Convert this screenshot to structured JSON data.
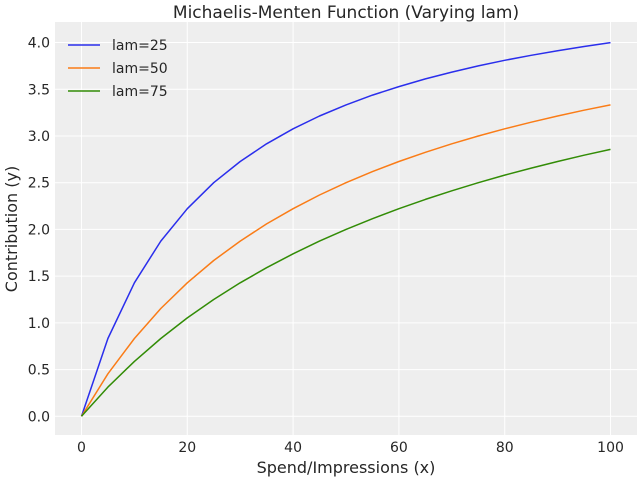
{
  "chart_data": {
    "type": "line",
    "title": "Michaelis-Menten Function (Varying lam)",
    "xlabel": "Spend/Impressions (x)",
    "ylabel": "Contribution (y)",
    "xlim": [
      -5,
      105
    ],
    "ylim": [
      -0.2,
      4.22
    ],
    "xticks": [
      0,
      20,
      40,
      60,
      80,
      100
    ],
    "xtick_labels": [
      "0",
      "20",
      "40",
      "60",
      "80",
      "100"
    ],
    "yticks": [
      0,
      0.5,
      1,
      1.5,
      2,
      2.5,
      3,
      3.5,
      4
    ],
    "ytick_labels": [
      "0.0",
      "0.5",
      "1.0",
      "1.5",
      "2.0",
      "2.5",
      "3.0",
      "3.5",
      "4.0"
    ],
    "grid": true,
    "background": "#eeeeee",
    "legend_position": "top-left",
    "x": [
      0,
      5,
      10,
      15,
      20,
      25,
      30,
      35,
      40,
      45,
      50,
      55,
      60,
      65,
      70,
      75,
      80,
      85,
      90,
      95,
      100
    ],
    "series": [
      {
        "name": "lam=25",
        "color": "#2a2eec",
        "values": [
          0,
          0.833,
          1.429,
          1.875,
          2.222,
          2.5,
          2.727,
          2.917,
          3.077,
          3.214,
          3.333,
          3.438,
          3.529,
          3.611,
          3.684,
          3.75,
          3.81,
          3.864,
          3.913,
          3.958,
          4.0
        ]
      },
      {
        "name": "lam=50",
        "color": "#fa7c17",
        "values": [
          0,
          0.455,
          0.833,
          1.154,
          1.429,
          1.667,
          1.875,
          2.059,
          2.222,
          2.368,
          2.5,
          2.619,
          2.727,
          2.826,
          2.917,
          3.0,
          3.077,
          3.148,
          3.214,
          3.276,
          3.333
        ]
      },
      {
        "name": "lam=75",
        "color": "#328c06",
        "values": [
          0,
          0.3125,
          0.588,
          0.833,
          1.053,
          1.25,
          1.429,
          1.591,
          1.739,
          1.875,
          2.0,
          2.115,
          2.222,
          2.321,
          2.414,
          2.5,
          2.581,
          2.656,
          2.727,
          2.794,
          2.857
        ]
      }
    ]
  }
}
